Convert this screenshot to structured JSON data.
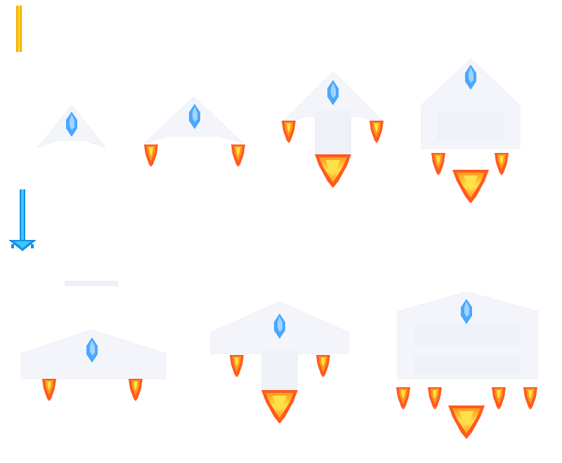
{
  "sprite_sheet": {
    "background": "#ffffff",
    "projectiles": [
      {
        "name": "yellow-laser-beam",
        "color": "#ffd21a",
        "edge_color": "#f5a800"
      },
      {
        "name": "blue-laser-beam-arrow",
        "color": "#36c8ff",
        "edge_color": "#1a8fe0"
      }
    ],
    "ship_palette": {
      "cockpit": "#4aa8ff",
      "cockpit_highlight": "#9fd4ff",
      "flame_outer": "#ff5a1f",
      "flame_middle": "#ff9a1a",
      "flame_inner": "#ffe14a"
    },
    "ships": [
      {
        "name": "ship-level-1",
        "small_flames": 0,
        "large_flames": 0
      },
      {
        "name": "ship-level-2",
        "small_flames": 2,
        "large_flames": 0
      },
      {
        "name": "ship-level-3",
        "small_flames": 2,
        "large_flames": 1
      },
      {
        "name": "ship-level-4",
        "small_flames": 2,
        "large_flames": 1
      },
      {
        "name": "ship-level-5",
        "small_flames": 2,
        "large_flames": 0
      },
      {
        "name": "ship-level-6",
        "small_flames": 2,
        "large_flames": 1
      },
      {
        "name": "ship-level-7",
        "small_flames": 4,
        "large_flames": 1
      }
    ]
  }
}
